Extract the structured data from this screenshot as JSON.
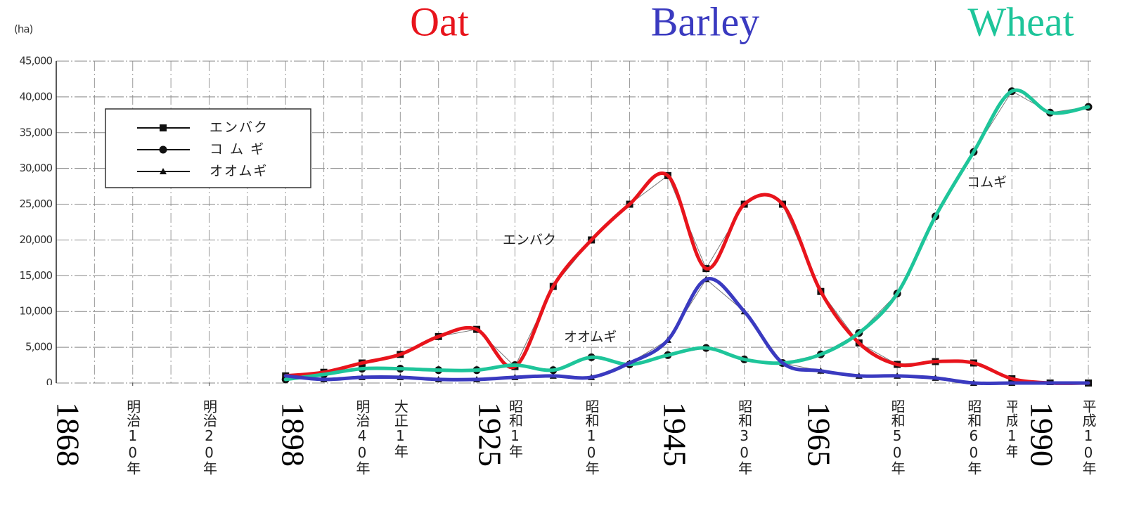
{
  "chart_data": {
    "type": "line",
    "y_label": "(ha)",
    "xlim": [
      1867,
      2002
    ],
    "ylim": [
      0,
      45000
    ],
    "yticks": [
      0,
      {
        "value": 5000,
        "label": "5,000"
      },
      {
        "value": 10000,
        "label": "10,000"
      },
      {
        "value": 15000,
        "label": "15,000"
      },
      {
        "value": 20000,
        "label": "20,000"
      },
      {
        "value": 25000,
        "label": "25,000"
      },
      {
        "value": 30000,
        "label": "30,000"
      },
      {
        "value": 35000,
        "label": "35,000"
      },
      {
        "value": 40000,
        "label": "40,000"
      },
      {
        "value": 45000,
        "label": "45,000"
      }
    ],
    "xticks": [
      {
        "value": 1877,
        "label": "明治10年"
      },
      {
        "value": 1887,
        "label": "明治20年"
      },
      {
        "value": 1907,
        "label": "明治40年"
      },
      {
        "value": 1912,
        "label": "大正1年"
      },
      {
        "value": 1927,
        "label": "昭和1年"
      },
      {
        "value": 1937,
        "label": "昭和10年"
      },
      {
        "value": 1957,
        "label": "昭和30年"
      },
      {
        "value": 1977,
        "label": "昭和50年"
      },
      {
        "value": 1987,
        "label": "昭和60年"
      },
      {
        "value": 1992,
        "label": "平成1年"
      },
      {
        "value": 2002,
        "label": "平成10年"
      }
    ],
    "grid": true,
    "legend": "upper left",
    "x": [
      1897,
      1902,
      1907,
      1912,
      1917,
      1922,
      1927,
      1932,
      1937,
      1942,
      1947,
      1952,
      1957,
      1962,
      1967,
      1972,
      1977,
      1982,
      1987,
      1992,
      1997,
      2002
    ],
    "series": [
      {
        "name": "エンバク",
        "label": "Oat",
        "inline_label": "エンバク",
        "marker": "square",
        "color": "#e8141c",
        "values": [
          1000,
          1500,
          2800,
          4000,
          6500,
          7500,
          2300,
          13500,
          20000,
          25000,
          29000,
          16000,
          25000,
          25000,
          12800,
          5600,
          2600,
          3000,
          2800,
          600,
          0,
          0
        ]
      },
      {
        "name": "コ ム ギ",
        "label": "Wheat",
        "inline_label": "コムギ",
        "marker": "circle",
        "color": "#1ec59a",
        "values": [
          500,
          1200,
          2000,
          2000,
          1800,
          1800,
          2500,
          1800,
          3600,
          2600,
          3900,
          4900,
          3300,
          2800,
          4000,
          7000,
          12500,
          23300,
          32300,
          40800,
          37800,
          38600
        ]
      },
      {
        "name": "オオムギ",
        "label": "Barley",
        "inline_label": "オオムギ",
        "marker": "triangle",
        "color": "#3a3ac0",
        "values": [
          1000,
          500,
          800,
          800,
          500,
          500,
          800,
          1000,
          800,
          2800,
          6000,
          14500,
          10000,
          2800,
          1700,
          1000,
          1000,
          700,
          0,
          0,
          0,
          0
        ]
      }
    ],
    "year_labels": [
      "1868",
      "1898",
      "1925",
      "1945",
      "1965",
      "1990"
    ]
  }
}
